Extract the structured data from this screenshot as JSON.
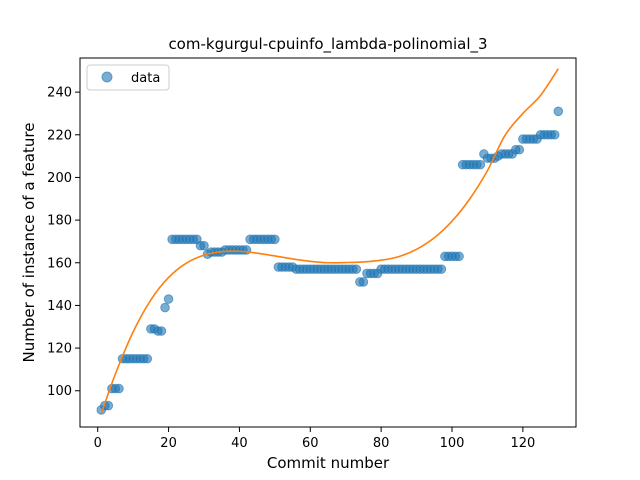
{
  "chart_data": {
    "type": "scatter",
    "title": "com-kgurgul-cpuinfo_lambda-polinomial_3",
    "xlabel": "Commit number",
    "ylabel": "Number of instance of a feature",
    "xlim": [
      -5,
      135
    ],
    "ylim": [
      83,
      256
    ],
    "xticks": [
      0,
      20,
      40,
      60,
      80,
      100,
      120
    ],
    "yticks": [
      100,
      120,
      140,
      160,
      180,
      200,
      220,
      240
    ],
    "grid": false,
    "legend_position": "top-left",
    "colors": {
      "data": "#1f77b4",
      "fit": "#ff7f0e"
    },
    "series": [
      {
        "name": "data",
        "kind": "points",
        "x": [
          1,
          2,
          3,
          4,
          5,
          6,
          7,
          8,
          9,
          10,
          11,
          12,
          13,
          14,
          15,
          16,
          17,
          18,
          19,
          20,
          21,
          22,
          23,
          24,
          25,
          26,
          27,
          28,
          29,
          30,
          31,
          32,
          33,
          34,
          35,
          36,
          37,
          38,
          39,
          40,
          41,
          42,
          43,
          44,
          45,
          46,
          47,
          48,
          49,
          50,
          51,
          52,
          53,
          54,
          55,
          56,
          57,
          58,
          59,
          60,
          61,
          62,
          63,
          64,
          65,
          66,
          67,
          68,
          69,
          70,
          71,
          72,
          73,
          74,
          75,
          76,
          77,
          78,
          79,
          80,
          81,
          82,
          83,
          84,
          85,
          86,
          87,
          88,
          89,
          90,
          91,
          92,
          93,
          94,
          95,
          96,
          97,
          98,
          99,
          100,
          101,
          102,
          103,
          104,
          105,
          106,
          107,
          108,
          109,
          110,
          111,
          112,
          113,
          114,
          115,
          116,
          117,
          118,
          119,
          120,
          121,
          122,
          123,
          124,
          125,
          126,
          127,
          128,
          129,
          130
        ],
        "y": [
          91,
          93,
          93,
          101,
          101,
          101,
          115,
          115,
          115,
          115,
          115,
          115,
          115,
          115,
          129,
          129,
          128,
          128,
          139,
          143,
          171,
          171,
          171,
          171,
          171,
          171,
          171,
          171,
          168,
          168,
          164,
          165,
          165,
          165,
          165,
          166,
          166,
          166,
          166,
          166,
          166,
          166,
          171,
          171,
          171,
          171,
          171,
          171,
          171,
          171,
          158,
          158,
          158,
          158,
          158,
          157,
          157,
          157,
          157,
          157,
          157,
          157,
          157,
          157,
          157,
          157,
          157,
          157,
          157,
          157,
          157,
          157,
          157,
          151,
          151,
          155,
          155,
          155,
          155,
          157,
          157,
          157,
          157,
          157,
          157,
          157,
          157,
          157,
          157,
          157,
          157,
          157,
          157,
          157,
          157,
          157,
          157,
          163,
          163,
          163,
          163,
          163,
          206,
          206,
          206,
          206,
          206,
          206,
          211,
          209,
          209,
          209,
          210,
          211,
          211,
          211,
          211,
          213,
          213,
          218,
          218,
          218,
          218,
          218,
          220,
          220,
          220,
          220,
          220,
          231
        ]
      },
      {
        "name": "",
        "kind": "line",
        "x": [
          1,
          5,
          10,
          15,
          20,
          25,
          30,
          35,
          40,
          45,
          50,
          55,
          60,
          65,
          70,
          75,
          80,
          85,
          90,
          95,
          100,
          105,
          110,
          115,
          120,
          125,
          130
        ],
        "y": [
          89.2,
          107.9,
          127.6,
          142.6,
          153.1,
          159.8,
          163.6,
          165.2,
          165.4,
          164.5,
          163.2,
          161.8,
          160.7,
          160.0,
          160.1,
          160.4,
          161.2,
          162.9,
          166.3,
          171.7,
          179.5,
          189.9,
          203.2,
          219.8,
          230.0,
          238.5,
          251.0
        ]
      }
    ],
    "legend": [
      {
        "label": "data",
        "marker": "circle"
      }
    ]
  }
}
